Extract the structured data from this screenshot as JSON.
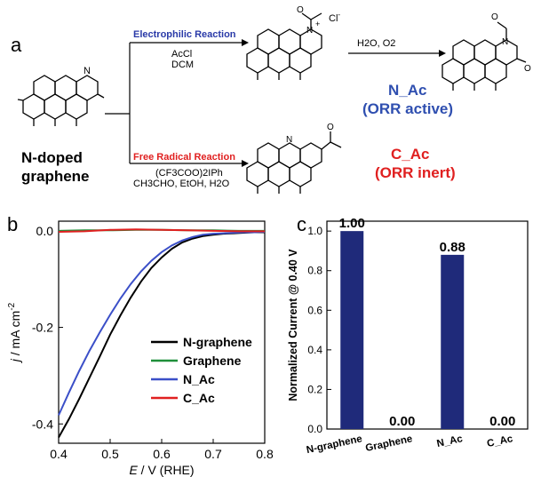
{
  "panel_a": {
    "letter": "a",
    "start_label_line1": "N-doped",
    "start_label_line2": "graphene",
    "top_path": {
      "reaction": "Electrophilic Reaction",
      "reagent1": "AcCl",
      "reagent2": "DCM",
      "counter_ion": "Cl",
      "counter_ion_sup": "-",
      "charge": "+",
      "second_step": "H2O, O2",
      "product_name": "N_Ac",
      "product_activity": "(ORR active)",
      "reaction_color": "#2a3aa8",
      "product_color": "#2f4fb0"
    },
    "bottom_path": {
      "reaction": "Free Radical Reaction",
      "reagent1": "(CF3COO)2IPh",
      "reagent2": "CH3CHO, EtOH, H2O",
      "product_name": "C_Ac",
      "product_activity": "(ORR inert)",
      "reaction_color": "#e02020",
      "product_color": "#e02020"
    },
    "atoms": {
      "N": "N",
      "O": "O"
    }
  },
  "panel_b": {
    "letter": "b",
    "chart_data": {
      "type": "line",
      "xlabel_italic": "E",
      "xlabel_rest": " / V (RHE)",
      "ylabel_italic": "j",
      "ylabel_rest": " / mA cm",
      "ylabel_sup": "-2",
      "xlim": [
        0.4,
        0.8
      ],
      "ylim": [
        -0.44,
        0.02
      ],
      "xticks": [
        "0.4",
        "0.5",
        "0.6",
        "0.7",
        "0.8"
      ],
      "yticks": [
        "0.0",
        "-0.2",
        "-0.4"
      ],
      "legend_position": "right",
      "series": [
        {
          "name": "N-graphene",
          "color": "#000000",
          "x": [
            0.4,
            0.42,
            0.44,
            0.46,
            0.48,
            0.5,
            0.52,
            0.54,
            0.56,
            0.58,
            0.6,
            0.62,
            0.64,
            0.66,
            0.68,
            0.7,
            0.72,
            0.74,
            0.76,
            0.78,
            0.8
          ],
          "y": [
            -0.428,
            -0.39,
            -0.348,
            -0.304,
            -0.26,
            -0.215,
            -0.175,
            -0.138,
            -0.105,
            -0.077,
            -0.055,
            -0.037,
            -0.024,
            -0.016,
            -0.011,
            -0.008,
            -0.006,
            -0.005,
            -0.004,
            -0.003,
            -0.003
          ]
        },
        {
          "name": "Graphene",
          "color": "#1f8f3a",
          "x": [
            0.4,
            0.45,
            0.5,
            0.55,
            0.6,
            0.65,
            0.7,
            0.75,
            0.8
          ],
          "y": [
            0.0,
            0.001,
            0.001,
            0.002,
            0.002,
            0.001,
            0.001,
            0.0,
            0.0
          ]
        },
        {
          "name": "N_Ac",
          "color": "#3b4fc8",
          "x": [
            0.4,
            0.42,
            0.44,
            0.46,
            0.48,
            0.5,
            0.52,
            0.54,
            0.56,
            0.58,
            0.6,
            0.62,
            0.64,
            0.66,
            0.68,
            0.7,
            0.72,
            0.74,
            0.76,
            0.78,
            0.8
          ],
          "y": [
            -0.382,
            -0.335,
            -0.29,
            -0.248,
            -0.21,
            -0.174,
            -0.14,
            -0.11,
            -0.084,
            -0.062,
            -0.044,
            -0.03,
            -0.02,
            -0.013,
            -0.008,
            -0.006,
            -0.005,
            -0.004,
            -0.003,
            -0.003,
            -0.002
          ]
        },
        {
          "name": "C_Ac",
          "color": "#e02020",
          "x": [
            0.4,
            0.45,
            0.5,
            0.55,
            0.6,
            0.65,
            0.7,
            0.75,
            0.8
          ],
          "y": [
            -0.002,
            -0.001,
            0.002,
            0.003,
            0.002,
            0.001,
            0.0,
            -0.001,
            -0.001
          ]
        }
      ]
    }
  },
  "panel_c": {
    "letter": "c",
    "chart_data": {
      "type": "bar",
      "categories": [
        "N-graphene",
        "Graphene",
        "N_Ac",
        "C_Ac"
      ],
      "values": [
        1.0,
        0.0,
        0.88,
        0.0
      ],
      "data_labels": [
        "1.00",
        "0.00",
        "0.88",
        "0.00"
      ],
      "ylabel": "Normalized Current @ 0.40 V",
      "ylim": [
        0,
        1.05
      ],
      "yticks": [
        "0.0",
        "0.2",
        "0.4",
        "0.6",
        "0.8",
        "1.0"
      ],
      "bar_color": "#1f2a7a"
    }
  }
}
